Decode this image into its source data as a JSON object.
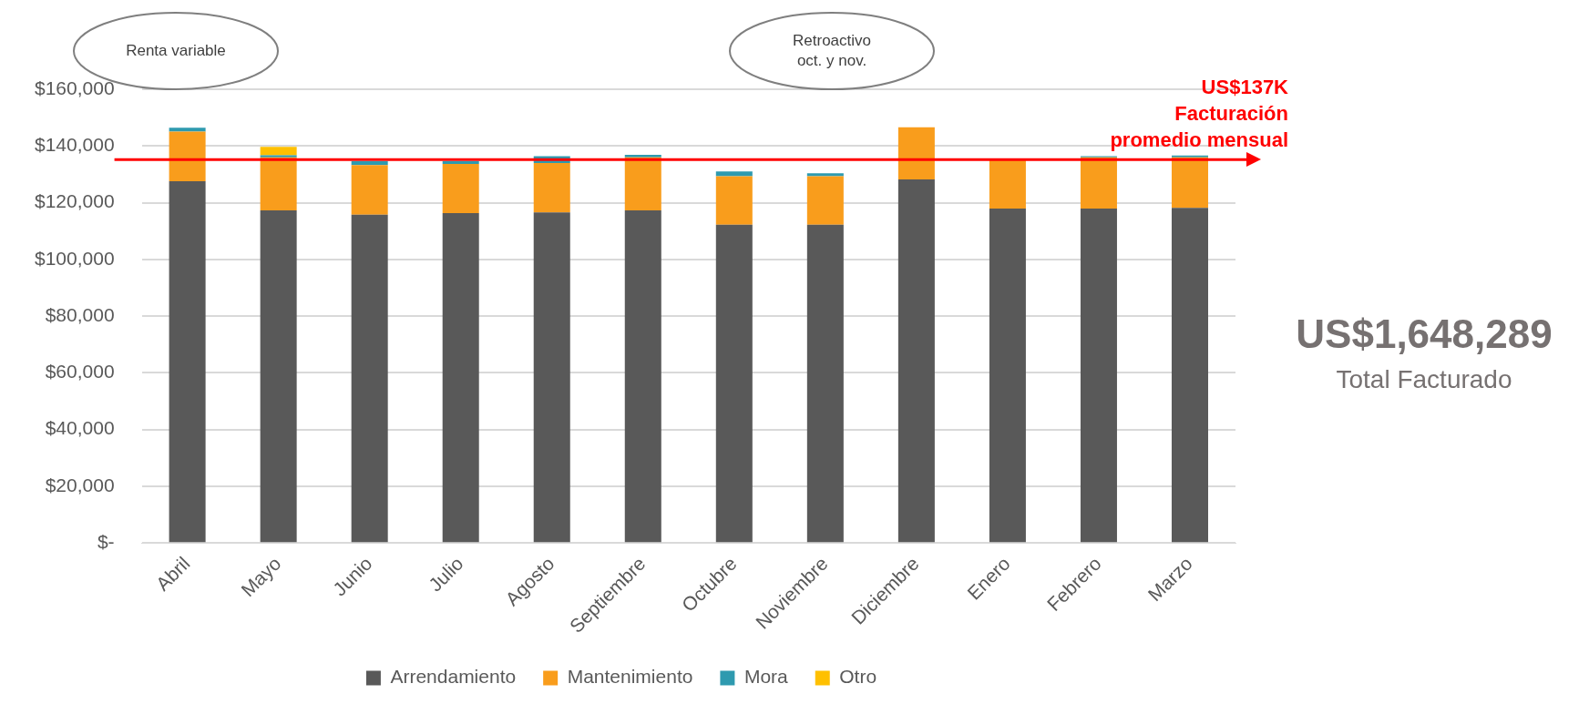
{
  "chart_data": {
    "type": "bar",
    "stacked": true,
    "categories": [
      "Abril",
      "Mayo",
      "Junio",
      "Julio",
      "Agosto",
      "Septiembre",
      "Octubre",
      "Noviembre",
      "Diciembre",
      "Enero",
      "Febrero",
      "Marzo"
    ],
    "series": [
      {
        "name": "Arrendamiento",
        "color": "#595959",
        "values": [
          127600,
          117300,
          115800,
          116300,
          116600,
          117300,
          112200,
          112200,
          128200,
          117900,
          117900,
          118200
        ]
      },
      {
        "name": "Mantenimiento",
        "color": "#f99d1c",
        "values": [
          17500,
          18700,
          17500,
          17400,
          17400,
          18700,
          17100,
          17100,
          18400,
          17600,
          18100,
          17800
        ]
      },
      {
        "name": "Mora",
        "color": "#2e9aaf",
        "values": [
          1300,
          700,
          1300,
          900,
          2400,
          900,
          1700,
          1100,
          0,
          0,
          400,
          600
        ]
      },
      {
        "name": "Otro",
        "color": "#ffc000",
        "values": [
          0,
          3000,
          0,
          0,
          0,
          0,
          0,
          0,
          0,
          0,
          0,
          0
        ]
      }
    ],
    "ylim": [
      0,
      160000
    ],
    "yticks": [
      {
        "value": 0,
        "label": "$-"
      },
      {
        "value": 20000,
        "label": "$20,000"
      },
      {
        "value": 40000,
        "label": "$40,000"
      },
      {
        "value": 60000,
        "label": "$60,000"
      },
      {
        "value": 80000,
        "label": "$80,000"
      },
      {
        "value": 100000,
        "label": "$100,000"
      },
      {
        "value": 120000,
        "label": "$120,000"
      },
      {
        "value": 140000,
        "label": "$140,000"
      },
      {
        "value": 160000,
        "label": "$160,000"
      }
    ],
    "grid": "y",
    "legend": "bottom",
    "ref_lines": [
      {
        "axis": "y",
        "value": 135200,
        "label": "US$137K Facturación promedio mensual",
        "color": "#ff0000"
      }
    ],
    "annotations": [
      "Renta variable",
      "Retroactivo oct. y nov.",
      "US$1,648,289",
      "Total Facturado"
    ]
  }
}
